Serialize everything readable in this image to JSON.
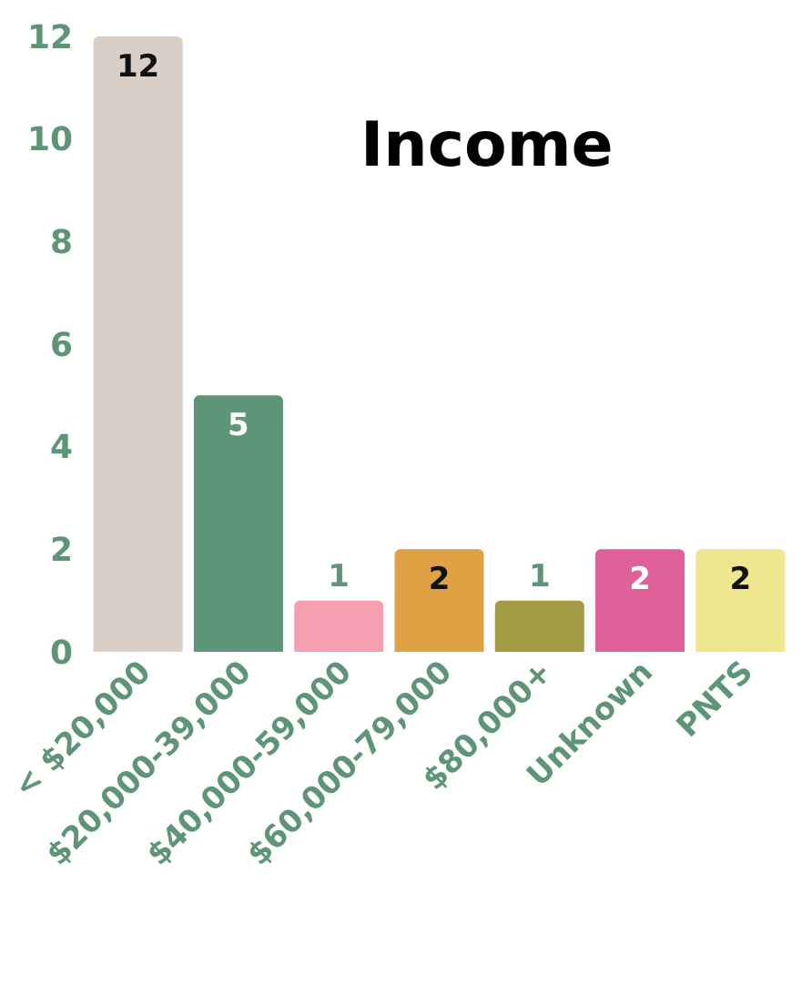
{
  "chart_data": {
    "type": "bar",
    "title": "Income",
    "categories": [
      "< $20,000",
      "$20,000-39,000",
      "$40,000-59,000",
      "$60,000-79,000",
      "$80,000+",
      "Unknown",
      "PNTS"
    ],
    "values": [
      12,
      5,
      1,
      2,
      1,
      2,
      2
    ],
    "colors": [
      "#d9cfc6",
      "#5e9478",
      "#f4a0b0",
      "#e0a044",
      "#a29a44",
      "#e0609a",
      "#efe790"
    ],
    "ylim": [
      0,
      12
    ],
    "yticks": [
      0,
      2,
      4,
      6,
      8,
      10,
      12
    ],
    "grid": false,
    "data_labels": true
  }
}
